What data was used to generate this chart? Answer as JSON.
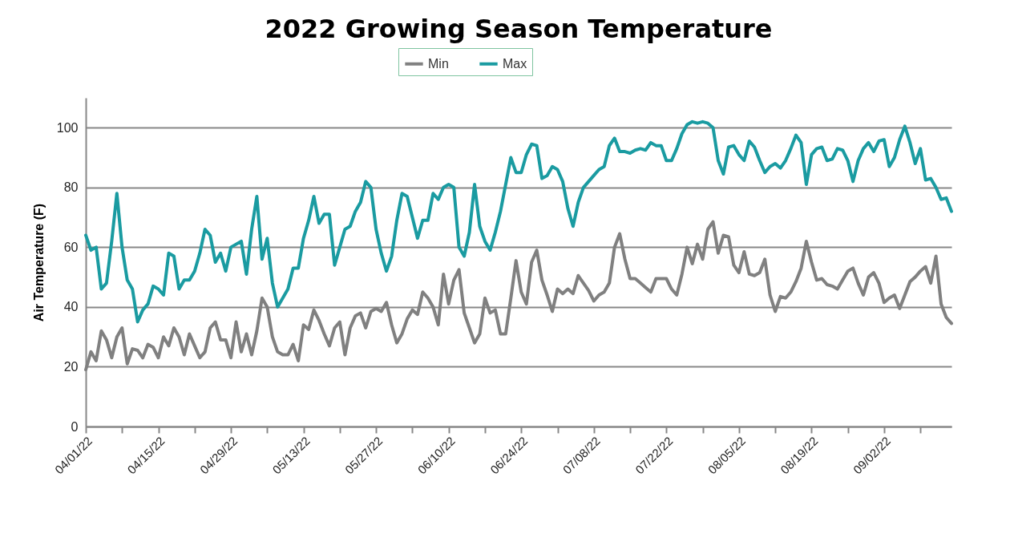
{
  "chart_data": {
    "type": "line",
    "title": "2022 Growing Season Temperature",
    "ylabel": "Air Temperature (F)",
    "x": [
      "2022-04-01",
      "2022-04-02",
      "2022-04-03",
      "2022-04-04",
      "2022-04-05",
      "2022-04-06",
      "2022-04-07",
      "2022-04-08",
      "2022-04-09",
      "2022-04-10",
      "2022-04-11",
      "2022-04-12",
      "2022-04-13",
      "2022-04-14",
      "2022-04-15",
      "2022-04-16",
      "2022-04-17",
      "2022-04-18",
      "2022-04-19",
      "2022-04-20",
      "2022-04-21",
      "2022-04-22",
      "2022-04-23",
      "2022-04-24",
      "2022-04-25",
      "2022-04-26",
      "2022-04-27",
      "2022-04-28",
      "2022-04-29",
      "2022-04-30",
      "2022-05-01",
      "2022-05-02",
      "2022-05-03",
      "2022-05-04",
      "2022-05-05",
      "2022-05-06",
      "2022-05-07",
      "2022-05-08",
      "2022-05-09",
      "2022-05-10",
      "2022-05-11",
      "2022-05-12",
      "2022-05-13",
      "2022-05-14",
      "2022-05-15",
      "2022-05-16",
      "2022-05-17",
      "2022-05-18",
      "2022-05-19",
      "2022-05-20",
      "2022-05-21",
      "2022-05-22",
      "2022-05-23",
      "2022-05-24",
      "2022-05-25",
      "2022-05-26",
      "2022-05-27",
      "2022-05-28",
      "2022-05-29",
      "2022-05-30",
      "2022-05-31",
      "2022-06-01",
      "2022-06-02",
      "2022-06-03",
      "2022-06-04",
      "2022-06-05",
      "2022-06-06",
      "2022-06-07",
      "2022-06-08",
      "2022-06-09",
      "2022-06-10",
      "2022-06-11",
      "2022-06-12",
      "2022-06-13",
      "2022-06-14",
      "2022-06-15",
      "2022-06-16",
      "2022-06-17",
      "2022-06-18",
      "2022-06-19",
      "2022-06-20",
      "2022-06-21",
      "2022-06-22",
      "2022-06-23",
      "2022-06-24",
      "2022-06-25",
      "2022-06-26",
      "2022-06-27",
      "2022-06-28",
      "2022-06-29",
      "2022-06-30",
      "2022-07-01",
      "2022-07-02",
      "2022-07-03",
      "2022-07-04",
      "2022-07-05",
      "2022-07-06",
      "2022-07-07",
      "2022-07-08",
      "2022-07-09",
      "2022-07-10",
      "2022-07-11",
      "2022-07-12",
      "2022-07-13",
      "2022-07-14",
      "2022-07-15",
      "2022-07-16",
      "2022-07-17",
      "2022-07-18",
      "2022-07-19",
      "2022-07-20",
      "2022-07-21",
      "2022-07-22",
      "2022-07-23",
      "2022-07-24",
      "2022-07-25",
      "2022-07-26",
      "2022-07-27",
      "2022-07-28",
      "2022-07-29",
      "2022-07-30",
      "2022-07-31",
      "2022-08-01",
      "2022-08-02",
      "2022-08-03",
      "2022-08-04",
      "2022-08-05",
      "2022-08-06",
      "2022-08-07",
      "2022-08-08",
      "2022-08-09",
      "2022-08-10",
      "2022-08-11",
      "2022-08-12",
      "2022-08-13",
      "2022-08-14",
      "2022-08-15",
      "2022-08-16",
      "2022-08-17",
      "2022-08-18",
      "2022-08-19",
      "2022-08-20",
      "2022-08-21",
      "2022-08-22",
      "2022-08-23",
      "2022-08-24",
      "2022-08-25",
      "2022-08-26",
      "2022-08-27",
      "2022-08-28",
      "2022-08-29",
      "2022-08-30",
      "2022-08-31",
      "2022-09-01",
      "2022-09-02",
      "2022-09-03",
      "2022-09-04",
      "2022-09-05",
      "2022-09-06",
      "2022-09-07",
      "2022-09-08",
      "2022-09-09",
      "2022-09-10",
      "2022-09-11",
      "2022-09-12",
      "2022-09-13",
      "2022-09-14",
      "2022-09-15"
    ],
    "series": [
      {
        "name": "Min",
        "color": "#808080",
        "values": [
          19,
          25,
          22,
          32,
          29,
          23,
          30,
          33,
          21,
          26,
          25.5,
          23,
          27.5,
          26.5,
          23,
          30,
          27,
          33,
          30,
          24,
          31,
          27,
          23,
          25,
          33,
          35,
          29,
          29,
          23,
          35,
          25,
          31,
          24,
          32,
          43,
          40,
          30,
          25,
          24,
          24,
          27.5,
          22,
          34,
          32.5,
          39,
          35.5,
          31,
          27,
          33,
          35,
          24,
          33,
          37,
          38,
          33,
          38.5,
          39.5,
          38.5,
          41.5,
          34,
          28,
          31,
          36,
          39,
          37.5,
          45,
          43,
          40,
          34,
          51,
          41,
          49,
          52.5,
          38,
          33,
          28,
          31,
          43,
          38,
          39,
          31,
          31,
          43,
          55.5,
          45,
          41,
          55,
          59,
          49,
          44,
          38.5,
          46,
          44.5,
          46,
          44.5,
          50.5,
          48,
          45.5,
          42,
          44,
          45,
          48,
          60,
          64.5,
          56,
          49.5,
          49.5,
          48,
          46.5,
          45,
          49.5,
          49.5,
          49.5,
          46,
          44,
          51,
          60,
          54.5,
          61,
          56,
          66,
          68.5,
          58,
          64,
          63.5,
          54,
          51.5,
          58.5,
          51,
          50.5,
          51.5,
          56,
          44,
          38.5,
          43.5,
          43,
          45,
          48.5,
          53,
          62,
          55,
          49,
          49.5,
          47.5,
          47,
          46,
          49,
          52,
          53,
          48,
          44,
          50,
          51.5,
          48,
          41.5,
          43,
          44,
          39.5,
          44,
          48.5,
          50,
          52,
          53.5,
          48,
          57,
          41,
          36.5,
          34.5
        ]
      },
      {
        "name": "Max",
        "color": "#1a9ba1",
        "values": [
          64,
          59,
          60,
          46,
          48,
          62,
          78,
          60,
          49,
          46,
          35,
          39,
          41,
          47,
          46,
          44,
          58,
          57,
          46,
          49,
          49,
          52,
          58,
          66,
          64,
          55,
          58,
          52,
          60,
          61,
          62,
          51,
          66,
          77,
          56,
          63,
          48,
          40,
          43,
          46,
          53,
          53,
          63,
          69,
          77,
          68,
          71,
          71,
          54,
          60,
          66,
          67,
          72,
          75,
          82,
          80,
          66,
          58,
          52,
          57,
          69,
          78,
          77,
          70,
          63,
          69,
          69,
          78,
          76,
          80,
          81,
          80,
          60,
          57,
          65,
          81,
          67,
          62,
          59,
          65,
          72,
          81,
          90,
          85,
          85,
          91,
          94.5,
          94,
          83,
          84,
          87,
          86,
          82,
          73,
          67,
          75,
          80,
          82,
          84,
          86,
          87,
          94,
          96.5,
          92,
          92,
          91.5,
          92.5,
          93,
          92.5,
          95,
          94,
          94,
          89,
          89,
          93,
          98,
          101,
          102,
          101.5,
          102,
          101.5,
          100,
          89,
          84.5,
          93.5,
          94,
          91,
          89,
          95.5,
          93.5,
          89,
          85,
          87,
          88,
          86.5,
          89,
          93,
          97.5,
          95,
          81,
          91,
          93,
          93.5,
          89,
          89.5,
          93,
          92.5,
          89,
          82,
          89,
          93,
          95,
          92,
          95.5,
          96,
          87,
          90,
          96,
          100.5,
          95,
          88,
          93,
          82.5,
          83,
          80,
          76,
          76.5,
          72
        ]
      }
    ],
    "xlim": [
      "2022-04-01",
      "2022-09-15"
    ],
    "xticks": [
      {
        "value": "2022-04-01",
        "label": "04/01/22"
      },
      {
        "value": "2022-04-08",
        "label": null
      },
      {
        "value": "2022-04-15",
        "label": "04/15/22"
      },
      {
        "value": "2022-04-22",
        "label": null
      },
      {
        "value": "2022-04-29",
        "label": "04/29/22"
      },
      {
        "value": "2022-05-06",
        "label": null
      },
      {
        "value": "2022-05-13",
        "label": "05/13/22"
      },
      {
        "value": "2022-05-20",
        "label": null
      },
      {
        "value": "2022-05-27",
        "label": "05/27/22"
      },
      {
        "value": "2022-06-03",
        "label": null
      },
      {
        "value": "2022-06-10",
        "label": "06/10/22"
      },
      {
        "value": "2022-06-17",
        "label": null
      },
      {
        "value": "2022-06-24",
        "label": "06/24/22"
      },
      {
        "value": "2022-07-01",
        "label": null
      },
      {
        "value": "2022-07-08",
        "label": "07/08/22"
      },
      {
        "value": "2022-07-15",
        "label": null
      },
      {
        "value": "2022-07-22",
        "label": "07/22/22"
      },
      {
        "value": "2022-07-29",
        "label": null
      },
      {
        "value": "2022-08-05",
        "label": "08/05/22"
      },
      {
        "value": "2022-08-12",
        "label": null
      },
      {
        "value": "2022-08-19",
        "label": "08/19/22"
      },
      {
        "value": "2022-08-26",
        "label": null
      },
      {
        "value": "2022-09-02",
        "label": "09/02/22"
      },
      {
        "value": "2022-09-09",
        "label": null
      }
    ],
    "ylim": [
      0,
      110
    ],
    "yticks": [
      0,
      20,
      40,
      60,
      80,
      100
    ],
    "grid": "y",
    "legend": "top",
    "marker": "none",
    "line_style": "solid"
  }
}
